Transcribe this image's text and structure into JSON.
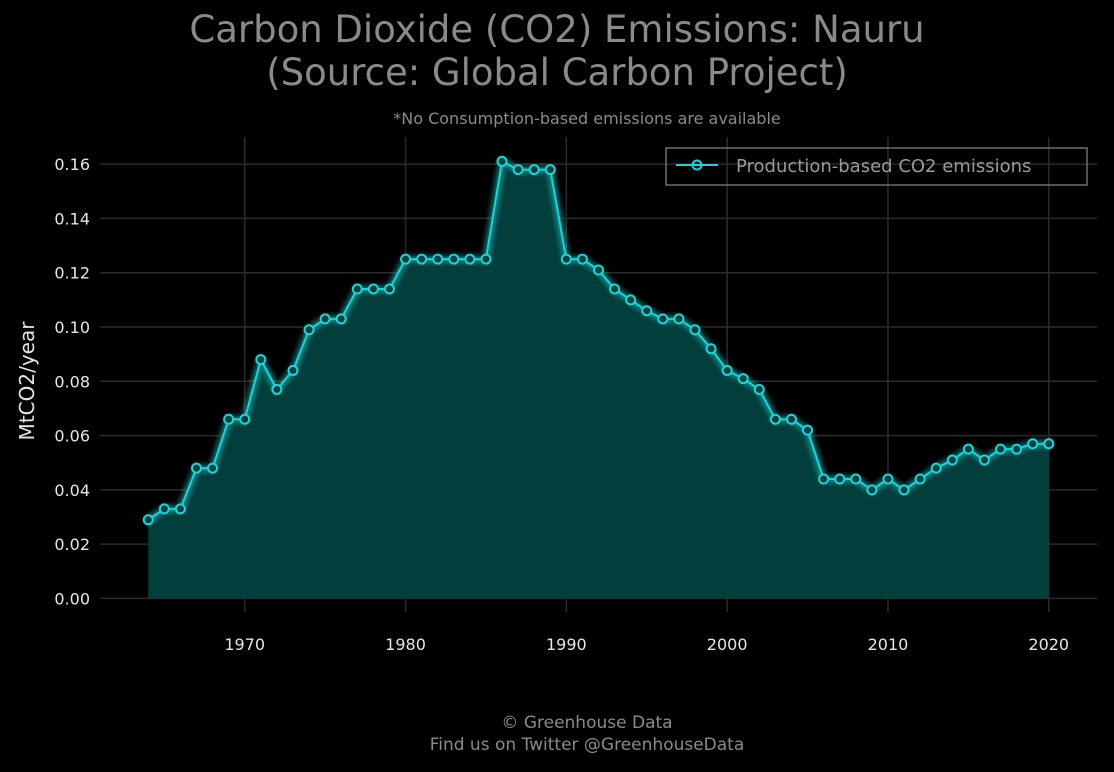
{
  "title_lines": [
    "Carbon Dioxide (CO2) Emissions: Nauru",
    "(Source: Global Carbon Project)"
  ],
  "subtitle": "*No Consumption-based emissions are available",
  "footer_lines": [
    "© Greenhouse Data",
    "Find us on Twitter @GreenhouseData"
  ],
  "colors": {
    "background": "#000000",
    "line": "#1fd3d6",
    "area": "#02413f",
    "grid": "#2b2b2b"
  },
  "chart_data": {
    "type": "area",
    "ylabel": "MtCO2/year",
    "xlabel": "",
    "xlim": [
      1961,
      2023
    ],
    "ylim": [
      -0.005,
      0.17
    ],
    "xticks": [
      1970,
      1980,
      1990,
      2000,
      2010,
      2020
    ],
    "yticks": [
      "0.00",
      "0.02",
      "0.04",
      "0.06",
      "0.08",
      "0.10",
      "0.12",
      "0.14",
      "0.16"
    ],
    "grid": true,
    "legend_position": "top-right",
    "x": [
      1964,
      1965,
      1966,
      1967,
      1968,
      1969,
      1970,
      1971,
      1972,
      1973,
      1974,
      1975,
      1976,
      1977,
      1978,
      1979,
      1980,
      1981,
      1982,
      1983,
      1984,
      1985,
      1986,
      1987,
      1988,
      1989,
      1990,
      1991,
      1992,
      1993,
      1994,
      1995,
      1996,
      1997,
      1998,
      1999,
      2000,
      2001,
      2002,
      2003,
      2004,
      2005,
      2006,
      2007,
      2008,
      2009,
      2010,
      2011,
      2012,
      2013,
      2014,
      2015,
      2016,
      2017,
      2018,
      2019,
      2020
    ],
    "series": [
      {
        "name": "Production-based CO2 emissions",
        "values": [
          0.029,
          0.033,
          0.033,
          0.048,
          0.048,
          0.066,
          0.066,
          0.088,
          0.077,
          0.084,
          0.099,
          0.103,
          0.103,
          0.114,
          0.114,
          0.114,
          0.125,
          0.125,
          0.125,
          0.125,
          0.125,
          0.125,
          0.161,
          0.158,
          0.158,
          0.158,
          0.125,
          0.125,
          0.121,
          0.114,
          0.11,
          0.106,
          0.103,
          0.103,
          0.099,
          0.092,
          0.084,
          0.081,
          0.077,
          0.066,
          0.066,
          0.062,
          0.044,
          0.044,
          0.044,
          0.04,
          0.044,
          0.04,
          0.044,
          0.048,
          0.051,
          0.055,
          0.051,
          0.055,
          0.055,
          0.057,
          0.057
        ]
      }
    ]
  }
}
